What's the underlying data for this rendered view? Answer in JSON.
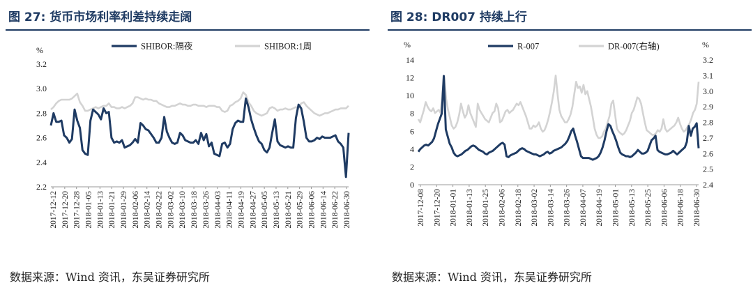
{
  "left_panel": {
    "title": "图 27:  货币市场利率利差持续走阔",
    "source": "数据来源：Wind 资讯，东吴证券研究所"
  },
  "right_panel": {
    "title": "图 28:  DR007 持续上行",
    "source": "数据来源：Wind 资讯，东吴证券研究所"
  },
  "colors": {
    "navy": "#1f3b63",
    "gray": "#d3d3d3"
  },
  "chart_data": [
    {
      "type": "line",
      "title": "货币市场利率利差持续走阔",
      "ylabel": "%",
      "ylim": [
        2.2,
        3.2
      ],
      "yticks": [
        "3.2",
        "3.0",
        "2.8",
        "2.6",
        "2.4",
        "2.2"
      ],
      "x_ticks": [
        "2017-12-12",
        "2017-12-20",
        "2017-12-28",
        "2018-01-05",
        "2018-01-13",
        "2018-01-21",
        "2018-01-29",
        "2018-02-06",
        "2018-02-14",
        "2018-02-22",
        "2018-03-02",
        "2018-03-10",
        "2018-03-18",
        "2018-03-26",
        "2018-04-03",
        "2018-04-11",
        "2018-04-19",
        "2018-04-27",
        "2018-05-05",
        "2018-05-13",
        "2018-05-21",
        "2018-05-29",
        "2018-06-06",
        "2018-06-14",
        "2018-06-22",
        "2018-06-30"
      ],
      "legend": "top-center",
      "series": [
        {
          "name": "SHIBOR:隔夜",
          "color": "#1f3b63",
          "values": [
            2.7,
            2.8,
            2.73,
            2.73,
            2.74,
            2.62,
            2.6,
            2.56,
            2.59,
            2.83,
            2.74,
            2.68,
            2.5,
            2.47,
            2.46,
            2.74,
            2.83,
            2.81,
            2.79,
            2.75,
            2.84,
            2.8,
            2.81,
            2.6,
            2.56,
            2.57,
            2.56,
            2.58,
            2.52,
            2.53,
            2.54,
            2.56,
            2.59,
            2.56,
            2.72,
            2.7,
            2.67,
            2.66,
            2.63,
            2.6,
            2.56,
            2.56,
            2.6,
            2.77,
            2.65,
            2.6,
            2.56,
            2.55,
            2.56,
            2.64,
            2.62,
            2.58,
            2.57,
            2.56,
            2.56,
            2.58,
            2.55,
            2.64,
            2.58,
            2.63,
            2.53,
            2.56,
            2.47,
            2.46,
            2.45,
            2.55,
            2.56,
            2.52,
            2.55,
            2.67,
            2.72,
            2.74,
            2.73,
            2.73,
            2.92,
            2.85,
            2.75,
            2.68,
            2.62,
            2.57,
            2.55,
            2.5,
            2.48,
            2.52,
            2.64,
            2.75,
            2.57,
            2.54,
            2.53,
            2.52,
            2.53,
            2.52,
            2.52,
            2.76,
            2.87,
            2.84,
            2.73,
            2.6,
            2.57,
            2.57,
            2.58,
            2.6,
            2.59,
            2.61,
            2.6,
            2.6,
            2.6,
            2.61,
            2.62,
            2.57,
            2.55,
            2.52,
            2.28,
            2.64
          ]
        },
        {
          "name": "SHIBOR:1周",
          "color": "#d3d3d3",
          "values": [
            2.83,
            2.85,
            2.88,
            2.9,
            2.91,
            2.91,
            2.91,
            2.91,
            2.92,
            2.94,
            2.96,
            2.89,
            2.86,
            2.82,
            2.82,
            2.83,
            2.84,
            2.85,
            2.84,
            2.85,
            2.86,
            2.86,
            2.88,
            2.85,
            2.85,
            2.84,
            2.84,
            2.85,
            2.84,
            2.85,
            2.86,
            2.88,
            2.93,
            2.93,
            2.92,
            2.91,
            2.92,
            2.91,
            2.91,
            2.9,
            2.9,
            2.88,
            2.87,
            2.86,
            2.85,
            2.85,
            2.86,
            2.86,
            2.87,
            2.88,
            2.87,
            2.87,
            2.86,
            2.86,
            2.87,
            2.87,
            2.86,
            2.86,
            2.86,
            2.85,
            2.86,
            2.86,
            2.86,
            2.85,
            2.85,
            2.82,
            2.81,
            2.82,
            2.86,
            2.87,
            2.89,
            2.9,
            2.92,
            2.97,
            2.95,
            2.89,
            2.86,
            2.82,
            2.8,
            2.79,
            2.78,
            2.79,
            2.8,
            2.84,
            2.85,
            2.84,
            2.82,
            2.83,
            2.83,
            2.84,
            2.83,
            2.83,
            2.84,
            2.85,
            2.84,
            2.88,
            2.89,
            2.86,
            2.84,
            2.82,
            2.8,
            2.79,
            2.78,
            2.79,
            2.8,
            2.8,
            2.81,
            2.82,
            2.83,
            2.83,
            2.84,
            2.84,
            2.84,
            2.86
          ]
        }
      ]
    },
    {
      "type": "line",
      "title": "DR007 持续上行",
      "ylabel": "%",
      "y2label": "%",
      "ylim": [
        0,
        14
      ],
      "y2lim": [
        2.4,
        3.2
      ],
      "yticks": [
        "14",
        "12",
        "10",
        "8",
        "6",
        "4",
        "2",
        "0"
      ],
      "y2ticks": [
        "3.2",
        "3.1",
        "3.0",
        "2.9",
        "2.8",
        "2.7",
        "2.6",
        "2.5",
        "2.4"
      ],
      "x_ticks": [
        "2017-12-08",
        "2017-12-20",
        "2018-01-01",
        "2018-01-13",
        "2018-01-25",
        "2018-02-06",
        "2018-02-18",
        "2018-03-02",
        "2018-03-14",
        "2018-03-26",
        "2018-04-07",
        "2018-04-19",
        "2018-05-01",
        "2018-05-13",
        "2018-05-25",
        "2018-06-06",
        "2018-06-18",
        "2018-06-30"
      ],
      "legend": "top-center",
      "series": [
        {
          "name": "R-007",
          "axis": "left",
          "color": "#1f3b63",
          "values": [
            3.7,
            4.0,
            4.2,
            4.4,
            4.5,
            4.4,
            4.6,
            4.8,
            5.2,
            6.0,
            6.8,
            7.4,
            8.0,
            12.2,
            6.2,
            5.4,
            4.6,
            4.2,
            3.6,
            3.3,
            3.2,
            3.3,
            3.4,
            3.6,
            3.8,
            3.9,
            4.1,
            4.3,
            4.4,
            4.3,
            4.1,
            3.9,
            3.8,
            3.7,
            3.5,
            3.4,
            3.6,
            3.7,
            3.8,
            4.0,
            4.2,
            4.4,
            4.6,
            4.7,
            4.5,
            3.2,
            3.1,
            3.3,
            3.4,
            3.5,
            3.6,
            3.8,
            4.0,
            4.1,
            4.0,
            3.8,
            3.7,
            3.6,
            3.5,
            3.4,
            3.4,
            3.3,
            3.2,
            3.3,
            3.4,
            3.6,
            3.7,
            3.5,
            3.6,
            3.8,
            3.9,
            4.0,
            4.1,
            4.2,
            4.4,
            4.6,
            4.9,
            5.4,
            6.0,
            6.3,
            5.5,
            4.8,
            4.0,
            3.2,
            3.0,
            3.0,
            3.0,
            3.0,
            2.9,
            2.8,
            2.9,
            3.0,
            3.2,
            3.6,
            4.2,
            5.0,
            6.0,
            6.8,
            6.6,
            6.0,
            5.5,
            4.9,
            4.2,
            3.6,
            3.4,
            3.3,
            3.2,
            3.2,
            3.1,
            3.2,
            3.4,
            3.6,
            3.9,
            3.7,
            3.5,
            3.5,
            3.6,
            3.8,
            4.4,
            5.0,
            5.2,
            5.5,
            3.9,
            3.7,
            3.6,
            3.5,
            3.4,
            3.4,
            3.5,
            3.6,
            3.8,
            3.6,
            3.4,
            3.6,
            3.8,
            4.0,
            4.2,
            4.8,
            6.6,
            5.5,
            6.3,
            6.5,
            6.9,
            4.1
          ]
        },
        {
          "name": "DR-007(右轴)",
          "axis": "right",
          "color": "#d3d3d3",
          "values": [
            2.82,
            2.8,
            2.84,
            2.88,
            2.93,
            2.9,
            2.88,
            2.87,
            2.89,
            2.86,
            2.87,
            2.88,
            2.86,
            3.0,
            3.09,
            2.95,
            2.88,
            2.83,
            2.78,
            2.76,
            2.77,
            2.8,
            2.85,
            2.92,
            2.87,
            2.83,
            2.85,
            2.91,
            2.86,
            2.83,
            2.8,
            2.77,
            2.92,
            2.88,
            2.86,
            2.84,
            2.82,
            2.81,
            2.8,
            2.83,
            2.86,
            2.87,
            2.92,
            2.89,
            2.8,
            2.81,
            2.84,
            2.87,
            2.88,
            2.86,
            2.87,
            2.88,
            2.9,
            2.92,
            2.91,
            2.93,
            2.9,
            2.87,
            2.84,
            2.8,
            2.76,
            2.76,
            2.78,
            2.77,
            2.78,
            2.8,
            2.76,
            2.74,
            2.75,
            2.78,
            2.82,
            2.87,
            2.93,
            3.0,
            3.1,
            2.98,
            2.88,
            2.84,
            2.82,
            2.8,
            2.8,
            2.82,
            2.85,
            2.9,
            2.98,
            3.06,
            3.02,
            3.03,
            2.99,
            3.04,
            2.98,
            3.0,
            2.95,
            2.9,
            2.83,
            2.76,
            2.72,
            2.7,
            2.7,
            2.71,
            2.74,
            2.76,
            2.8,
            2.84,
            2.92,
            2.94,
            2.85,
            2.76,
            2.74,
            2.73,
            2.72,
            2.73,
            2.75,
            2.78,
            2.81,
            2.86,
            2.88,
            2.92,
            2.96,
            2.95,
            2.92,
            2.86,
            2.8,
            2.75,
            2.74,
            2.73,
            2.72,
            2.72,
            2.73,
            2.75,
            2.74,
            2.76,
            2.82,
            2.76,
            2.74,
            2.75,
            2.76,
            2.77,
            2.78,
            2.8,
            2.83,
            2.79,
            2.76,
            2.74,
            2.75,
            2.77,
            2.79,
            2.82,
            2.86,
            2.88,
            2.92,
            3.06
          ]
        }
      ]
    }
  ]
}
